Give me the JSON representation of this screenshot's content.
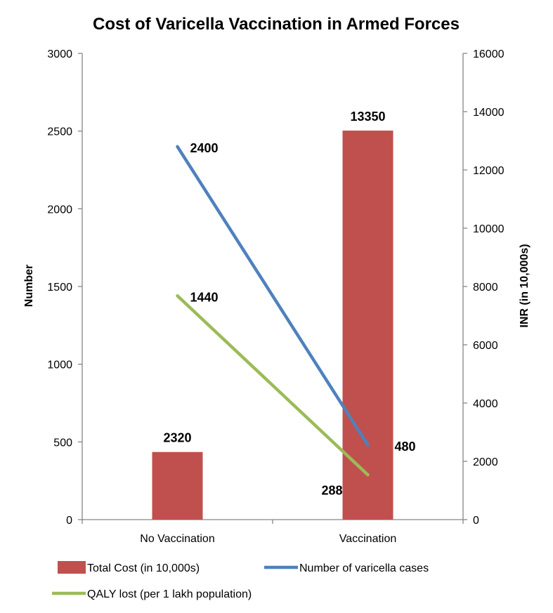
{
  "chart_data": {
    "type": "bar",
    "title": "Cost of Varicella Vaccination in Armed Forces",
    "categories": [
      "No Vaccination",
      "Vaccination"
    ],
    "y_left": {
      "label": "Number",
      "min": 0,
      "max": 3000,
      "ticks": [
        0,
        500,
        1000,
        1500,
        2000,
        2500,
        3000
      ]
    },
    "y_right": {
      "label": "INR (in 10,000s)",
      "min": 0,
      "max": 16000,
      "ticks": [
        0,
        2000,
        4000,
        6000,
        8000,
        10000,
        12000,
        14000,
        16000
      ]
    },
    "series": [
      {
        "name": "Total Cost (in 10,000s)",
        "kind": "bar",
        "axis": "right",
        "color": "#C0504D",
        "values": [
          2320,
          13350
        ],
        "labels": [
          "2320",
          "13350"
        ]
      },
      {
        "name": "Number of varicella cases",
        "kind": "line",
        "axis": "left",
        "color": "#4F81BD",
        "values": [
          2400,
          480
        ],
        "labels": [
          "2400",
          "480"
        ]
      },
      {
        "name": "QALY lost (per 1 lakh population)",
        "kind": "line",
        "axis": "left",
        "color": "#9BBB59",
        "values": [
          1440,
          288
        ],
        "labels": [
          "1440",
          "288"
        ]
      }
    ],
    "legend_position": "bottom",
    "grid": false
  }
}
